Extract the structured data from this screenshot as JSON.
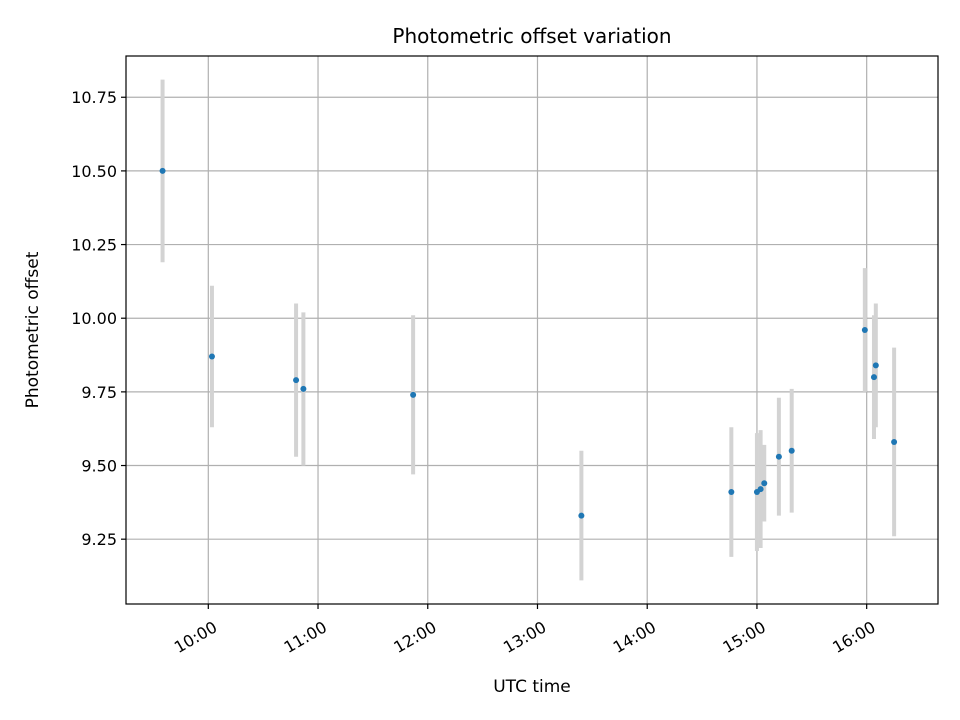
{
  "chart_data": {
    "type": "scatter",
    "title": "Photometric offset variation",
    "xlabel": "UTC time",
    "ylabel": "Photometric offset",
    "grid": true,
    "xlim": [
      "09:15",
      "16:39"
    ],
    "ylim": [
      9.03,
      10.89
    ],
    "x_ticks": [
      "10:00",
      "11:00",
      "12:00",
      "13:00",
      "14:00",
      "15:00",
      "16:00"
    ],
    "y_ticks": [
      "9.25",
      "9.50",
      "9.75",
      "10.00",
      "10.25",
      "10.50",
      "10.75"
    ],
    "series": [
      {
        "marker_color": "#1f77b4",
        "errorbar_color": "#d3d3d3",
        "points": [
          {
            "x": "09:35",
            "y": 10.5,
            "yerr": 0.31
          },
          {
            "x": "10:02",
            "y": 9.87,
            "yerr": 0.24
          },
          {
            "x": "10:48",
            "y": 9.79,
            "yerr": 0.26
          },
          {
            "x": "10:52",
            "y": 9.76,
            "yerr": 0.26
          },
          {
            "x": "11:52",
            "y": 9.74,
            "yerr": 0.27
          },
          {
            "x": "13:24",
            "y": 9.33,
            "yerr": 0.22
          },
          {
            "x": "14:46",
            "y": 9.41,
            "yerr": 0.22
          },
          {
            "x": "15:00",
            "y": 9.41,
            "yerr": 0.2
          },
          {
            "x": "15:02",
            "y": 9.42,
            "yerr": 0.2
          },
          {
            "x": "15:04",
            "y": 9.44,
            "yerr": 0.13
          },
          {
            "x": "15:12",
            "y": 9.53,
            "yerr": 0.2
          },
          {
            "x": "15:19",
            "y": 9.55,
            "yerr": 0.21
          },
          {
            "x": "15:59",
            "y": 9.96,
            "yerr": 0.21
          },
          {
            "x": "16:04",
            "y": 9.8,
            "yerr": 0.21
          },
          {
            "x": "16:05",
            "y": 9.84,
            "yerr": 0.21
          },
          {
            "x": "16:15",
            "y": 9.58,
            "yerr": 0.32
          }
        ]
      }
    ]
  }
}
